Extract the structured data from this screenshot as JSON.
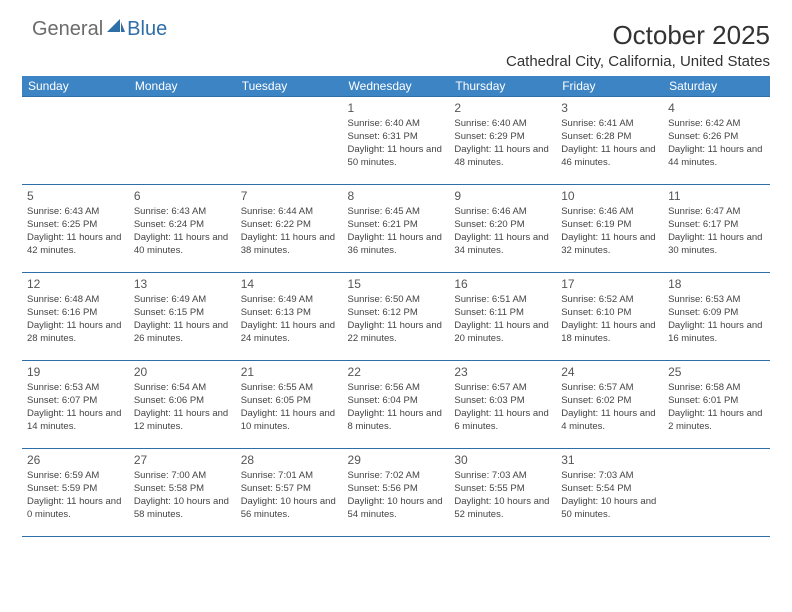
{
  "logo": {
    "text1": "General",
    "text2": "Blue"
  },
  "header": {
    "month_title": "October 2025",
    "location": "Cathedral City, California, United States"
  },
  "colors": {
    "header_bg": "#3d84c4",
    "header_fg": "#ffffff",
    "border": "#2f6fa8"
  },
  "weekdays": [
    "Sunday",
    "Monday",
    "Tuesday",
    "Wednesday",
    "Thursday",
    "Friday",
    "Saturday"
  ],
  "weeks": [
    [
      null,
      null,
      null,
      {
        "n": "1",
        "sr": "6:40 AM",
        "ss": "6:31 PM",
        "dl": "11 hours and 50 minutes."
      },
      {
        "n": "2",
        "sr": "6:40 AM",
        "ss": "6:29 PM",
        "dl": "11 hours and 48 minutes."
      },
      {
        "n": "3",
        "sr": "6:41 AM",
        "ss": "6:28 PM",
        "dl": "11 hours and 46 minutes."
      },
      {
        "n": "4",
        "sr": "6:42 AM",
        "ss": "6:26 PM",
        "dl": "11 hours and 44 minutes."
      }
    ],
    [
      {
        "n": "5",
        "sr": "6:43 AM",
        "ss": "6:25 PM",
        "dl": "11 hours and 42 minutes."
      },
      {
        "n": "6",
        "sr": "6:43 AM",
        "ss": "6:24 PM",
        "dl": "11 hours and 40 minutes."
      },
      {
        "n": "7",
        "sr": "6:44 AM",
        "ss": "6:22 PM",
        "dl": "11 hours and 38 minutes."
      },
      {
        "n": "8",
        "sr": "6:45 AM",
        "ss": "6:21 PM",
        "dl": "11 hours and 36 minutes."
      },
      {
        "n": "9",
        "sr": "6:46 AM",
        "ss": "6:20 PM",
        "dl": "11 hours and 34 minutes."
      },
      {
        "n": "10",
        "sr": "6:46 AM",
        "ss": "6:19 PM",
        "dl": "11 hours and 32 minutes."
      },
      {
        "n": "11",
        "sr": "6:47 AM",
        "ss": "6:17 PM",
        "dl": "11 hours and 30 minutes."
      }
    ],
    [
      {
        "n": "12",
        "sr": "6:48 AM",
        "ss": "6:16 PM",
        "dl": "11 hours and 28 minutes."
      },
      {
        "n": "13",
        "sr": "6:49 AM",
        "ss": "6:15 PM",
        "dl": "11 hours and 26 minutes."
      },
      {
        "n": "14",
        "sr": "6:49 AM",
        "ss": "6:13 PM",
        "dl": "11 hours and 24 minutes."
      },
      {
        "n": "15",
        "sr": "6:50 AM",
        "ss": "6:12 PM",
        "dl": "11 hours and 22 minutes."
      },
      {
        "n": "16",
        "sr": "6:51 AM",
        "ss": "6:11 PM",
        "dl": "11 hours and 20 minutes."
      },
      {
        "n": "17",
        "sr": "6:52 AM",
        "ss": "6:10 PM",
        "dl": "11 hours and 18 minutes."
      },
      {
        "n": "18",
        "sr": "6:53 AM",
        "ss": "6:09 PM",
        "dl": "11 hours and 16 minutes."
      }
    ],
    [
      {
        "n": "19",
        "sr": "6:53 AM",
        "ss": "6:07 PM",
        "dl": "11 hours and 14 minutes."
      },
      {
        "n": "20",
        "sr": "6:54 AM",
        "ss": "6:06 PM",
        "dl": "11 hours and 12 minutes."
      },
      {
        "n": "21",
        "sr": "6:55 AM",
        "ss": "6:05 PM",
        "dl": "11 hours and 10 minutes."
      },
      {
        "n": "22",
        "sr": "6:56 AM",
        "ss": "6:04 PM",
        "dl": "11 hours and 8 minutes."
      },
      {
        "n": "23",
        "sr": "6:57 AM",
        "ss": "6:03 PM",
        "dl": "11 hours and 6 minutes."
      },
      {
        "n": "24",
        "sr": "6:57 AM",
        "ss": "6:02 PM",
        "dl": "11 hours and 4 minutes."
      },
      {
        "n": "25",
        "sr": "6:58 AM",
        "ss": "6:01 PM",
        "dl": "11 hours and 2 minutes."
      }
    ],
    [
      {
        "n": "26",
        "sr": "6:59 AM",
        "ss": "5:59 PM",
        "dl": "11 hours and 0 minutes."
      },
      {
        "n": "27",
        "sr": "7:00 AM",
        "ss": "5:58 PM",
        "dl": "10 hours and 58 minutes."
      },
      {
        "n": "28",
        "sr": "7:01 AM",
        "ss": "5:57 PM",
        "dl": "10 hours and 56 minutes."
      },
      {
        "n": "29",
        "sr": "7:02 AM",
        "ss": "5:56 PM",
        "dl": "10 hours and 54 minutes."
      },
      {
        "n": "30",
        "sr": "7:03 AM",
        "ss": "5:55 PM",
        "dl": "10 hours and 52 minutes."
      },
      {
        "n": "31",
        "sr": "7:03 AM",
        "ss": "5:54 PM",
        "dl": "10 hours and 50 minutes."
      },
      null
    ]
  ],
  "labels": {
    "sunrise": "Sunrise: ",
    "sunset": "Sunset: ",
    "daylight": "Daylight: "
  }
}
